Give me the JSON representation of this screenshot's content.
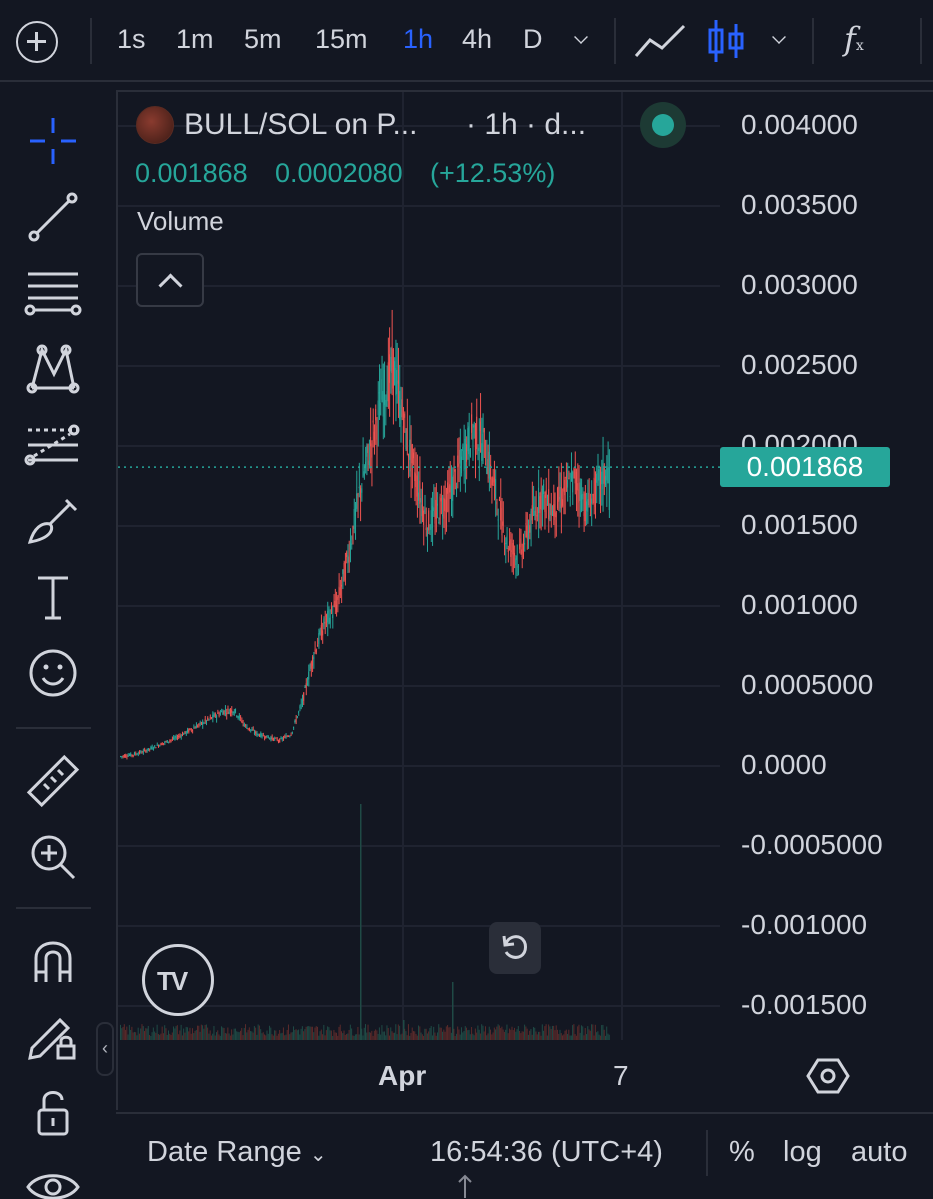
{
  "toolbar": {
    "intervals": [
      {
        "label": "1s",
        "active": false
      },
      {
        "label": "1m",
        "active": false
      },
      {
        "label": "5m",
        "active": false
      },
      {
        "label": "15m",
        "active": false
      },
      {
        "label": "1h",
        "active": true
      },
      {
        "label": "4h",
        "active": false
      },
      {
        "label": "D",
        "active": false
      }
    ],
    "fx_label": "f",
    "fx_sub": "x"
  },
  "left_toolbar": {
    "tools": [
      "crosshair-icon",
      "trend-line-icon",
      "fib-retracement-icon",
      "pattern-icon",
      "forecast-icon",
      "brush-icon",
      "text-tool-icon",
      "emoji-icon",
      "ruler-icon",
      "zoom-in-icon",
      "magnet-icon",
      "lock-drawing-icon",
      "unlock-icon",
      "eye-icon"
    ]
  },
  "legend": {
    "symbol": "BULL/SOL on P...",
    "interval": "· 1h · d...",
    "open": "0.001868",
    "change": "0.0002080",
    "change_pct": "(+12.53%)",
    "volume_label": "Volume"
  },
  "price_axis": {
    "labels": [
      "0.004000",
      "0.003500",
      "0.003000",
      "0.002500",
      "0.002000",
      "0.001500",
      "0.001000",
      "0.0005000",
      "0.0000",
      "-0.0005000",
      "-0.001000",
      "-0.001500"
    ],
    "last_price": "0.001868"
  },
  "time_axis": {
    "labels": [
      "Apr",
      "7"
    ]
  },
  "bottom_bar": {
    "date_range": "Date Range",
    "clock": "16:54:36 (UTC+4)",
    "percent": "%",
    "log": "log",
    "auto": "auto"
  },
  "colors": {
    "background": "#131722",
    "up": "#26a69a",
    "down": "#ef5350",
    "accent": "#2962ff"
  },
  "chart_data": {
    "type": "candlestick",
    "title": "BULL/SOL on P... · 1h",
    "ylim": [
      -0.0017,
      0.0041
    ],
    "xlabel": "",
    "ylabel": "",
    "x_ticks": [
      "Apr",
      "7"
    ],
    "last_price": 0.001868,
    "close_series": [
      6e-05,
      7e-05,
      9e-05,
      0.00012,
      0.00015,
      0.00018,
      0.00022,
      0.00026,
      0.0003,
      0.00034,
      0.00035,
      0.00025,
      0.0002,
      0.00018,
      0.00016,
      0.0002,
      0.0004,
      0.0007,
      0.0009,
      0.001,
      0.0013,
      0.0017,
      0.002,
      0.0023,
      0.0025,
      0.0021,
      0.0018,
      0.0015,
      0.0016,
      0.0017,
      0.0019,
      0.0021,
      0.002,
      0.0017,
      0.0014,
      0.0013,
      0.0015,
      0.0017,
      0.0016,
      0.0017,
      0.0018,
      0.0016,
      0.00175,
      0.001868
    ]
  }
}
